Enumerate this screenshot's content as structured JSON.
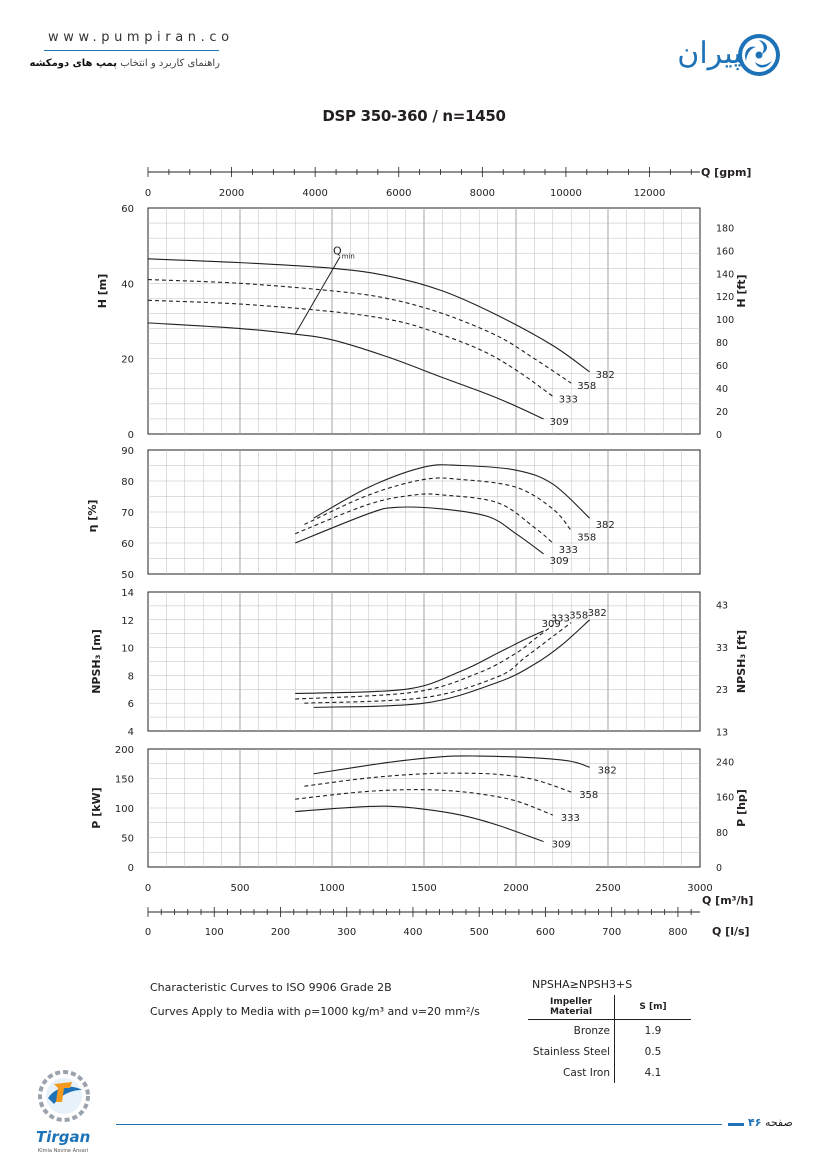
{
  "header": {
    "website": "www.pumpiran.co",
    "subtitle_prefix": "راهنمای کاربرد و انتخاب",
    "subtitle_bold": "پمپ های دومکشه",
    "brand_text": "پمپیران"
  },
  "chart_title": "DSP 350-360 / n=1450",
  "axes": {
    "x_gpm_label": "Q [gpm]",
    "x_gpm_ticks": [
      "0",
      "2000",
      "4000",
      "6000",
      "8000",
      "10000",
      "12000"
    ],
    "x_m3h_label": "Q [m³/h]",
    "x_m3h_ticks": [
      "0",
      "500",
      "1000",
      "1500",
      "2000",
      "2500",
      "3000"
    ],
    "x_ls_label": "Q [l/s]",
    "x_ls_ticks": [
      "0",
      "100",
      "200",
      "300",
      "400",
      "500",
      "600",
      "700",
      "800"
    ],
    "head_left_label": "H [m]",
    "head_left_ticks": [
      "0",
      "20",
      "40",
      "60"
    ],
    "head_right_label": "H [ft]",
    "head_right_ticks": [
      "0",
      "20",
      "40",
      "60",
      "80",
      "100",
      "120",
      "140",
      "160",
      "180"
    ],
    "eff_label": "η [%]",
    "eff_ticks": [
      "50",
      "60",
      "70",
      "80",
      "90"
    ],
    "npsh_left_label": "NPSH₃ [m]",
    "npsh_left_ticks": [
      "4",
      "6",
      "8",
      "10",
      "12",
      "14"
    ],
    "npsh_right_label": "NPSH₃ [ft]",
    "npsh_right_ticks": [
      "13",
      "23",
      "33",
      "43"
    ],
    "power_left_label": "P [kW]",
    "power_left_ticks": [
      "0",
      "50",
      "100",
      "150",
      "200"
    ],
    "power_right_label": "P [hp]",
    "power_right_ticks": [
      "0",
      "80",
      "160",
      "240"
    ],
    "qmin_label": "Qmin"
  },
  "chart_data": {
    "type": "line",
    "x_unit": "m³/h",
    "diameters": [
      "382",
      "358",
      "333",
      "309"
    ],
    "head": {
      "ylim": [
        0,
        60
      ],
      "series": [
        {
          "name": "382",
          "style": "solid",
          "x": [
            0,
            500,
            1000,
            1300,
            1600,
            1900,
            2200,
            2400
          ],
          "y": [
            46.5,
            45.5,
            44,
            42,
            38,
            31.5,
            23.5,
            16.5
          ]
        },
        {
          "name": "358",
          "style": "dashed",
          "x": [
            0,
            500,
            1000,
            1300,
            1600,
            1900,
            2100,
            2300
          ],
          "y": [
            41,
            40,
            38,
            36,
            32,
            26,
            20,
            13.5
          ]
        },
        {
          "name": "333",
          "style": "dashed",
          "x": [
            0,
            500,
            1000,
            1300,
            1500,
            1800,
            2000,
            2200
          ],
          "y": [
            35.5,
            34.5,
            32.5,
            30.5,
            28,
            22.5,
            17,
            10
          ]
        },
        {
          "name": "309",
          "style": "solid",
          "x": [
            0,
            500,
            800,
            1000,
            1300,
            1600,
            1900,
            2150
          ],
          "y": [
            29.5,
            28,
            26.5,
            25,
            20.5,
            15,
            9.5,
            4
          ]
        }
      ]
    },
    "qmin": {
      "x": [
        1000,
        800
      ],
      "y": [
        46,
        26.5
      ]
    },
    "efficiency": {
      "ylim": [
        50,
        90
      ],
      "series": [
        {
          "name": "382",
          "style": "solid",
          "x": [
            900,
            1200,
            1500,
            1700,
            2000,
            2200,
            2400
          ],
          "y": [
            68,
            78,
            84.5,
            85,
            83.5,
            79,
            68
          ]
        },
        {
          "name": "358",
          "style": "dashed",
          "x": [
            850,
            1200,
            1500,
            1700,
            2000,
            2200,
            2300
          ],
          "y": [
            66,
            75.5,
            80.5,
            80.5,
            78,
            71,
            64
          ]
        },
        {
          "name": "333",
          "style": "dashed",
          "x": [
            800,
            1200,
            1450,
            1600,
            1900,
            2100,
            2200
          ],
          "y": [
            63,
            72.5,
            75.5,
            75.5,
            73,
            65,
            60
          ]
        },
        {
          "name": "309",
          "style": "solid",
          "x": [
            800,
            1200,
            1350,
            1600,
            1850,
            2000,
            2150
          ],
          "y": [
            60,
            69.5,
            71.5,
            71,
            68.5,
            63,
            56.5
          ]
        }
      ]
    },
    "npsh": {
      "ylim": [
        4,
        14
      ],
      "series": [
        {
          "name": "382",
          "style": "solid",
          "x": [
            900,
            1500,
            1900,
            2100,
            2250,
            2400
          ],
          "y": [
            5.7,
            6,
            7.5,
            8.8,
            10.2,
            12
          ]
        },
        {
          "name": "358",
          "style": "dashed",
          "x": [
            850,
            1500,
            1900,
            2050,
            2200,
            2300
          ],
          "y": [
            6,
            6.4,
            7.9,
            9.3,
            10.8,
            11.8
          ]
        },
        {
          "name": "333",
          "style": "dashed",
          "x": [
            800,
            1450,
            1800,
            2000,
            2100,
            2200
          ],
          "y": [
            6.3,
            6.8,
            8.2,
            9.6,
            10.6,
            11.6
          ]
        },
        {
          "name": "309",
          "style": "solid",
          "x": [
            800,
            1400,
            1700,
            1900,
            2050,
            2150
          ],
          "y": [
            6.7,
            7,
            8.3,
            9.6,
            10.6,
            11.2
          ]
        }
      ]
    },
    "power": {
      "ylim": [
        0,
        200
      ],
      "series": [
        {
          "name": "382",
          "style": "solid",
          "x": [
            900,
            1300,
            1600,
            1800,
            2100,
            2300,
            2400
          ],
          "y": [
            158,
            177,
            187,
            188,
            185,
            179,
            169
          ]
        },
        {
          "name": "358",
          "style": "dashed",
          "x": [
            850,
            1200,
            1500,
            1700,
            1900,
            2100,
            2300
          ],
          "y": [
            137,
            151,
            158,
            159,
            157,
            148,
            127
          ]
        },
        {
          "name": "333",
          "style": "dashed",
          "x": [
            800,
            1150,
            1400,
            1600,
            1800,
            2000,
            2200
          ],
          "y": [
            115,
            127,
            131,
            130,
            124,
            112,
            88
          ]
        },
        {
          "name": "309",
          "style": "solid",
          "x": [
            800,
            1100,
            1300,
            1500,
            1700,
            1900,
            2150
          ],
          "y": [
            94,
            101,
            103,
            98,
            88,
            71,
            43
          ]
        }
      ]
    }
  },
  "notes": {
    "line1": "Characteristic Curves to ISO 9906 Grade 2B",
    "line2": "Curves Apply to Media with ρ=1000 kg/m³ and ν=20 mm²/s"
  },
  "safety_table": {
    "formula": "NPSHA≥NPSH3+S",
    "headers": [
      "Impeller Material",
      "S [m]"
    ],
    "rows": [
      {
        "material": "Bronze",
        "s": "1.9"
      },
      {
        "material": "Stainless Steel",
        "s": "0.5"
      },
      {
        "material": "Cast Iron",
        "s": "4.1"
      }
    ]
  },
  "footer": {
    "page_word": "صفحه",
    "page_number": "۴۶",
    "logo_text": "Tirgan",
    "logo_sub": "Kimia Novine Ansari"
  },
  "colors": {
    "brand_blue": "#1e73b8",
    "grid": "#bdbdbd",
    "curve": "#231f20"
  }
}
